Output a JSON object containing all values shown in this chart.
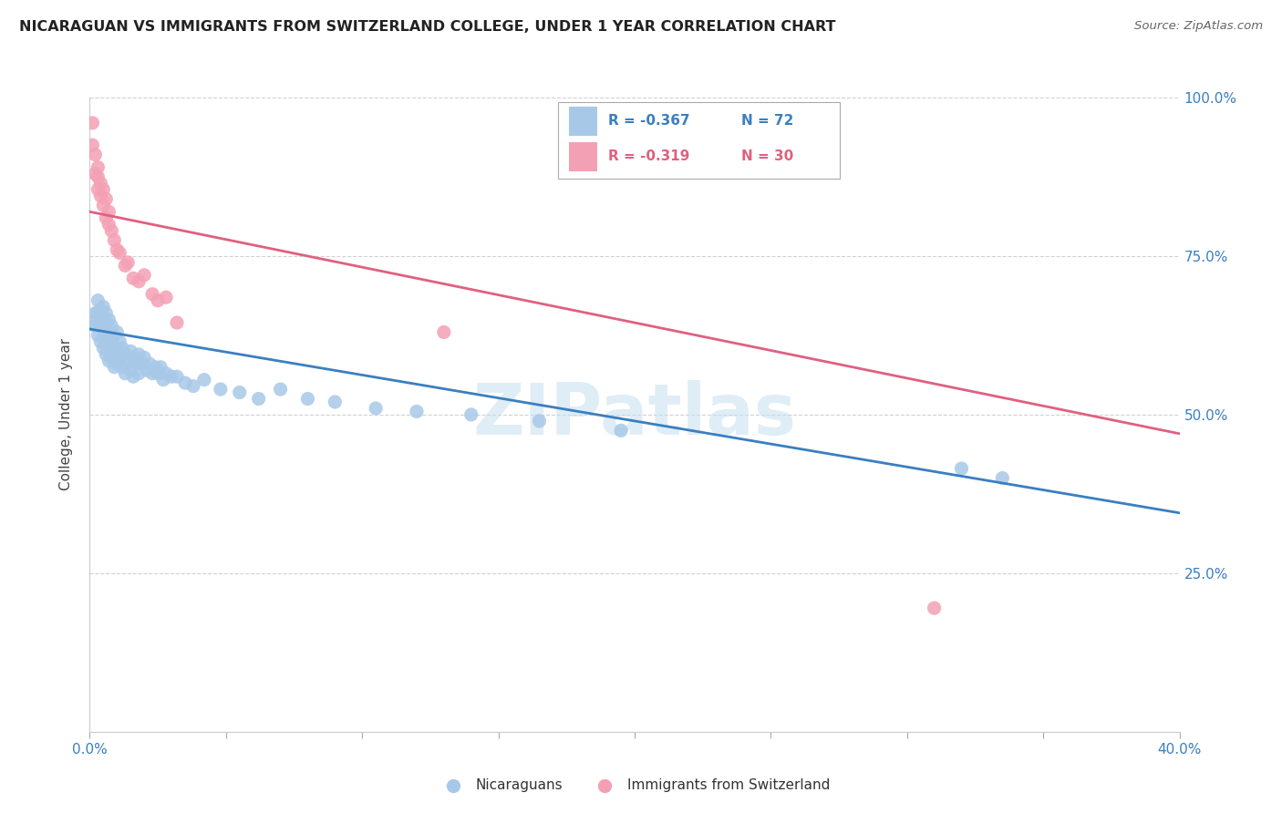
{
  "title": "NICARAGUAN VS IMMIGRANTS FROM SWITZERLAND COLLEGE, UNDER 1 YEAR CORRELATION CHART",
  "source": "Source: ZipAtlas.com",
  "ylabel": "College, Under 1 year",
  "x_min": 0.0,
  "x_max": 0.4,
  "y_min": 0.0,
  "y_max": 1.0,
  "x_ticks": [
    0.0,
    0.05,
    0.1,
    0.15,
    0.2,
    0.25,
    0.3,
    0.35,
    0.4
  ],
  "y_ticks": [
    0.0,
    0.25,
    0.5,
    0.75,
    1.0
  ],
  "watermark": "ZIPatlas",
  "blue_color": "#a8c8e8",
  "pink_color": "#f4a0b4",
  "blue_line_color": "#3a7fc1",
  "pink_line_color": "#e06080",
  "legend_r_blue": "-0.367",
  "legend_n_blue": "72",
  "legend_r_pink": "-0.319",
  "legend_n_pink": "30",
  "blue_line_x0": 0.0,
  "blue_line_y0": 0.635,
  "blue_line_x1": 0.4,
  "blue_line_y1": 0.345,
  "pink_line_x0": 0.0,
  "pink_line_y0": 0.82,
  "pink_line_x1": 0.4,
  "pink_line_y1": 0.47,
  "blue_scatter_x": [
    0.001,
    0.002,
    0.002,
    0.003,
    0.003,
    0.003,
    0.004,
    0.004,
    0.004,
    0.005,
    0.005,
    0.005,
    0.005,
    0.006,
    0.006,
    0.006,
    0.006,
    0.007,
    0.007,
    0.007,
    0.007,
    0.008,
    0.008,
    0.008,
    0.009,
    0.009,
    0.009,
    0.01,
    0.01,
    0.01,
    0.011,
    0.011,
    0.012,
    0.012,
    0.013,
    0.013,
    0.014,
    0.015,
    0.015,
    0.016,
    0.016,
    0.017,
    0.018,
    0.018,
    0.019,
    0.02,
    0.021,
    0.022,
    0.023,
    0.024,
    0.025,
    0.026,
    0.027,
    0.028,
    0.03,
    0.032,
    0.035,
    0.038,
    0.042,
    0.048,
    0.055,
    0.062,
    0.07,
    0.08,
    0.09,
    0.105,
    0.12,
    0.14,
    0.165,
    0.195,
    0.32,
    0.335
  ],
  "blue_scatter_y": [
    0.645,
    0.66,
    0.64,
    0.68,
    0.66,
    0.625,
    0.665,
    0.645,
    0.615,
    0.67,
    0.65,
    0.63,
    0.605,
    0.66,
    0.64,
    0.62,
    0.595,
    0.65,
    0.63,
    0.61,
    0.585,
    0.64,
    0.615,
    0.59,
    0.625,
    0.6,
    0.575,
    0.63,
    0.605,
    0.58,
    0.615,
    0.59,
    0.605,
    0.575,
    0.595,
    0.565,
    0.585,
    0.6,
    0.57,
    0.59,
    0.56,
    0.58,
    0.595,
    0.565,
    0.58,
    0.59,
    0.57,
    0.58,
    0.565,
    0.575,
    0.565,
    0.575,
    0.555,
    0.565,
    0.56,
    0.56,
    0.55,
    0.545,
    0.555,
    0.54,
    0.535,
    0.525,
    0.54,
    0.525,
    0.52,
    0.51,
    0.505,
    0.5,
    0.49,
    0.475,
    0.415,
    0.4
  ],
  "pink_scatter_x": [
    0.001,
    0.001,
    0.002,
    0.002,
    0.003,
    0.003,
    0.003,
    0.004,
    0.004,
    0.005,
    0.005,
    0.006,
    0.006,
    0.007,
    0.007,
    0.008,
    0.009,
    0.01,
    0.011,
    0.013,
    0.014,
    0.016,
    0.018,
    0.02,
    0.023,
    0.025,
    0.028,
    0.032,
    0.13,
    0.31
  ],
  "pink_scatter_y": [
    0.96,
    0.925,
    0.91,
    0.88,
    0.89,
    0.875,
    0.855,
    0.865,
    0.845,
    0.855,
    0.83,
    0.84,
    0.81,
    0.82,
    0.8,
    0.79,
    0.775,
    0.76,
    0.755,
    0.735,
    0.74,
    0.715,
    0.71,
    0.72,
    0.69,
    0.68,
    0.685,
    0.645,
    0.63,
    0.195
  ]
}
